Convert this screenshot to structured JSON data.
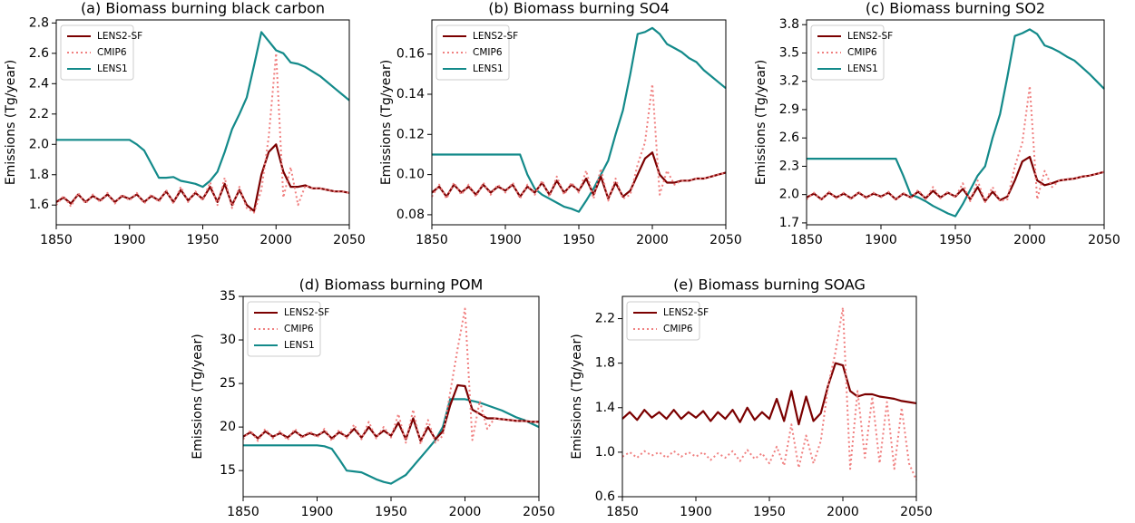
{
  "chart_data": [
    {
      "type": "line",
      "title": "(a) Biomass burning black carbon",
      "ylabel": "Emissions (Tg/year)",
      "x": [
        1850,
        1855,
        1860,
        1865,
        1870,
        1875,
        1880,
        1885,
        1890,
        1895,
        1900,
        1905,
        1910,
        1915,
        1920,
        1925,
        1930,
        1935,
        1940,
        1945,
        1950,
        1955,
        1960,
        1965,
        1970,
        1975,
        1980,
        1985,
        1990,
        1995,
        2000,
        2005,
        2010,
        2015,
        2020,
        2025,
        2030,
        2035,
        2040,
        2045,
        2050
      ],
      "xlim": [
        1850,
        2050
      ],
      "xticks": [
        1850,
        1900,
        1950,
        2000,
        2050
      ],
      "ylim": [
        1.47,
        2.82
      ],
      "yticks": [
        1.6,
        1.8,
        {
          "value": 2.0,
          "label": "2.0"
        },
        2.2,
        2.4,
        2.6,
        2.8
      ],
      "legend": "upper left",
      "series": [
        {
          "name": "LENS2-SF",
          "color": "#7b0000",
          "linestyle": "solid",
          "values": [
            1.62,
            1.65,
            1.61,
            1.67,
            1.62,
            1.66,
            1.63,
            1.67,
            1.62,
            1.66,
            1.64,
            1.67,
            1.62,
            1.66,
            1.63,
            1.69,
            1.62,
            1.7,
            1.63,
            1.68,
            1.64,
            1.72,
            1.62,
            1.74,
            1.6,
            1.7,
            1.6,
            1.56,
            1.8,
            1.95,
            2.0,
            1.82,
            1.72,
            1.72,
            1.73,
            1.71,
            1.71,
            1.7,
            1.69,
            1.69,
            1.68
          ]
        },
        {
          "name": "CMIP6",
          "color": "#f08080",
          "linestyle": "dotted",
          "values": [
            1.6,
            1.66,
            1.59,
            1.68,
            1.61,
            1.67,
            1.62,
            1.68,
            1.61,
            1.67,
            1.63,
            1.68,
            1.61,
            1.67,
            1.62,
            1.7,
            1.61,
            1.72,
            1.62,
            1.69,
            1.63,
            1.75,
            1.6,
            1.78,
            1.58,
            1.72,
            1.58,
            1.55,
            1.7,
            2.05,
            2.6,
            1.65,
            1.85,
            1.6,
            1.73,
            1.71,
            1.71,
            1.7,
            1.69,
            1.69,
            1.68
          ]
        },
        {
          "name": "LENS1",
          "color": "#138a8a",
          "linestyle": "solid",
          "values": [
            2.03,
            2.03,
            2.03,
            2.03,
            2.03,
            2.03,
            2.03,
            2.03,
            2.03,
            2.03,
            2.03,
            2.0,
            1.96,
            1.87,
            1.78,
            1.78,
            1.785,
            1.76,
            1.75,
            1.74,
            1.72,
            1.76,
            1.82,
            1.95,
            2.1,
            2.2,
            2.31,
            2.52,
            2.74,
            2.68,
            2.62,
            2.6,
            2.54,
            2.53,
            2.51,
            2.48,
            2.45,
            2.41,
            2.37,
            2.33,
            2.29
          ]
        }
      ]
    },
    {
      "type": "line",
      "title": "(b) Biomass burning SO4",
      "ylabel": "Emissions (Tg/year)",
      "x": [
        1850,
        1855,
        1860,
        1865,
        1870,
        1875,
        1880,
        1885,
        1890,
        1895,
        1900,
        1905,
        1910,
        1915,
        1920,
        1925,
        1930,
        1935,
        1940,
        1945,
        1950,
        1955,
        1960,
        1965,
        1970,
        1975,
        1980,
        1985,
        1990,
        1995,
        2000,
        2005,
        2010,
        2015,
        2020,
        2025,
        2030,
        2035,
        2040,
        2045,
        2050
      ],
      "xlim": [
        1850,
        2050
      ],
      "xticks": [
        1850,
        1900,
        1950,
        2000,
        2050
      ],
      "ylim": [
        0.075,
        0.177
      ],
      "yticks": [
        0.08,
        {
          "value": 0.1,
          "label": "0.10"
        },
        0.12,
        0.14,
        0.16
      ],
      "legend": "upper left",
      "series": [
        {
          "name": "LENS2-SF",
          "color": "#7b0000",
          "linestyle": "solid",
          "values": [
            0.091,
            0.094,
            0.089,
            0.095,
            0.091,
            0.094,
            0.09,
            0.095,
            0.091,
            0.094,
            0.092,
            0.095,
            0.089,
            0.094,
            0.091,
            0.096,
            0.09,
            0.097,
            0.091,
            0.095,
            0.092,
            0.098,
            0.09,
            0.099,
            0.088,
            0.096,
            0.089,
            0.092,
            0.1,
            0.108,
            0.111,
            0.1,
            0.096,
            0.096,
            0.097,
            0.097,
            0.098,
            0.098,
            0.099,
            0.1,
            0.101
          ]
        },
        {
          "name": "CMIP6",
          "color": "#f08080",
          "linestyle": "dotted",
          "values": [
            0.089,
            0.095,
            0.088,
            0.096,
            0.09,
            0.095,
            0.089,
            0.096,
            0.09,
            0.095,
            0.091,
            0.096,
            0.088,
            0.095,
            0.09,
            0.097,
            0.089,
            0.099,
            0.09,
            0.096,
            0.091,
            0.102,
            0.088,
            0.103,
            0.087,
            0.098,
            0.088,
            0.09,
            0.105,
            0.116,
            0.145,
            0.09,
            0.102,
            0.095,
            0.097,
            0.097,
            0.098,
            0.098,
            0.099,
            0.1,
            0.101
          ]
        },
        {
          "name": "LENS1",
          "color": "#138a8a",
          "linestyle": "solid",
          "values": [
            0.11,
            0.11,
            0.11,
            0.11,
            0.11,
            0.11,
            0.11,
            0.11,
            0.11,
            0.11,
            0.11,
            0.11,
            0.11,
            0.1,
            0.093,
            0.09,
            0.088,
            0.086,
            0.084,
            0.083,
            0.0815,
            0.087,
            0.093,
            0.1,
            0.107,
            0.12,
            0.132,
            0.15,
            0.17,
            0.171,
            0.173,
            0.17,
            0.165,
            0.163,
            0.161,
            0.158,
            0.156,
            0.152,
            0.149,
            0.146,
            0.143
          ]
        }
      ]
    },
    {
      "type": "line",
      "title": "(c) Biomass burning SO2",
      "ylabel": "Emissions (Tg/year)",
      "x": [
        1850,
        1855,
        1860,
        1865,
        1870,
        1875,
        1880,
        1885,
        1890,
        1895,
        1900,
        1905,
        1910,
        1915,
        1920,
        1925,
        1930,
        1935,
        1940,
        1945,
        1950,
        1955,
        1960,
        1965,
        1970,
        1975,
        1980,
        1985,
        1990,
        1995,
        2000,
        2005,
        2010,
        2015,
        2020,
        2025,
        2030,
        2035,
        2040,
        2045,
        2050
      ],
      "xlim": [
        1850,
        2050
      ],
      "xticks": [
        1850,
        1900,
        1950,
        2000,
        2050
      ],
      "ylim": [
        1.68,
        3.85
      ],
      "yticks": [
        1.7,
        {
          "value": 2.0,
          "label": "2.0"
        },
        2.3,
        2.6,
        2.9,
        3.2,
        3.5,
        3.8
      ],
      "legend": "upper left",
      "series": [
        {
          "name": "LENS2-SF",
          "color": "#7b0000",
          "linestyle": "solid",
          "values": [
            1.97,
            2.01,
            1.95,
            2.02,
            1.97,
            2.01,
            1.96,
            2.02,
            1.97,
            2.01,
            1.98,
            2.02,
            1.95,
            2.01,
            1.97,
            2.03,
            1.96,
            2.04,
            1.97,
            2.02,
            1.98,
            2.06,
            1.95,
            2.08,
            1.93,
            2.03,
            1.94,
            1.98,
            2.15,
            2.35,
            2.4,
            2.15,
            2.1,
            2.12,
            2.15,
            2.16,
            2.17,
            2.19,
            2.2,
            2.22,
            2.24
          ]
        },
        {
          "name": "CMIP6",
          "color": "#f08080",
          "linestyle": "dotted",
          "values": [
            1.95,
            2.02,
            1.94,
            2.03,
            1.96,
            2.02,
            1.95,
            2.03,
            1.96,
            2.02,
            1.97,
            2.03,
            1.94,
            2.02,
            1.96,
            2.05,
            1.95,
            2.08,
            1.96,
            2.03,
            1.97,
            2.12,
            1.93,
            2.15,
            1.92,
            2.08,
            1.93,
            1.95,
            2.3,
            2.55,
            3.15,
            1.95,
            2.25,
            2.08,
            2.15,
            2.16,
            2.17,
            2.19,
            2.2,
            2.22,
            2.24
          ]
        },
        {
          "name": "LENS1",
          "color": "#138a8a",
          "linestyle": "solid",
          "values": [
            2.38,
            2.38,
            2.38,
            2.38,
            2.38,
            2.38,
            2.38,
            2.38,
            2.38,
            2.38,
            2.38,
            2.38,
            2.38,
            2.2,
            2.0,
            1.97,
            1.93,
            1.88,
            1.84,
            1.8,
            1.77,
            1.9,
            2.05,
            2.2,
            2.3,
            2.6,
            2.85,
            3.25,
            3.68,
            3.71,
            3.75,
            3.7,
            3.58,
            3.55,
            3.51,
            3.46,
            3.42,
            3.35,
            3.28,
            3.2,
            3.12
          ]
        }
      ]
    },
    {
      "type": "line",
      "title": "(d) Biomass burning POM",
      "ylabel": "Emissions (Tg/year)",
      "x": [
        1850,
        1855,
        1860,
        1865,
        1870,
        1875,
        1880,
        1885,
        1890,
        1895,
        1900,
        1905,
        1910,
        1915,
        1920,
        1925,
        1930,
        1935,
        1940,
        1945,
        1950,
        1955,
        1960,
        1965,
        1970,
        1975,
        1980,
        1985,
        1990,
        1995,
        2000,
        2005,
        2010,
        2015,
        2020,
        2025,
        2030,
        2035,
        2040,
        2045,
        2050
      ],
      "xlim": [
        1850,
        2050
      ],
      "xticks": [
        1850,
        1900,
        1950,
        2000,
        2050
      ],
      "ylim": [
        12,
        35
      ],
      "yticks": [
        15,
        20,
        25,
        30,
        35
      ],
      "legend": "upper left",
      "series": [
        {
          "name": "LENS2-SF",
          "color": "#7b0000",
          "linestyle": "solid",
          "values": [
            18.9,
            19.4,
            18.7,
            19.5,
            18.9,
            19.3,
            18.8,
            19.5,
            18.9,
            19.3,
            19.0,
            19.5,
            18.7,
            19.4,
            18.9,
            19.8,
            18.8,
            20.0,
            18.9,
            19.6,
            19.0,
            20.5,
            18.6,
            21.0,
            18.4,
            20.0,
            18.6,
            19.5,
            22.5,
            24.8,
            24.7,
            22.0,
            21.5,
            21.0,
            21.0,
            20.9,
            20.8,
            20.7,
            20.7,
            20.6,
            20.6
          ]
        },
        {
          "name": "CMIP6",
          "color": "#f08080",
          "linestyle": "dotted",
          "values": [
            18.6,
            19.6,
            18.4,
            19.8,
            18.7,
            19.5,
            18.5,
            19.8,
            18.7,
            19.5,
            18.8,
            19.8,
            18.4,
            19.7,
            18.7,
            20.3,
            18.6,
            20.6,
            18.7,
            20.0,
            18.8,
            21.5,
            18.2,
            22.0,
            18.0,
            20.8,
            18.2,
            19.0,
            24.0,
            29.0,
            33.6,
            18.5,
            23.0,
            19.8,
            21.0,
            20.9,
            20.8,
            20.7,
            20.7,
            20.6,
            20.6
          ]
        },
        {
          "name": "LENS1",
          "color": "#138a8a",
          "linestyle": "solid",
          "values": [
            17.9,
            17.9,
            17.9,
            17.9,
            17.9,
            17.9,
            17.9,
            17.9,
            17.9,
            17.9,
            17.9,
            17.8,
            17.5,
            16.3,
            15,
            14.9,
            14.8,
            14.4,
            14,
            13.7,
            13.5,
            14,
            14.5,
            15.5,
            16.5,
            17.5,
            18.5,
            20,
            23.2,
            23.2,
            23.2,
            23,
            22.8,
            22.5,
            22.2,
            21.9,
            21.5,
            21.1,
            20.8,
            20.4,
            20.0
          ]
        }
      ]
    },
    {
      "type": "line",
      "title": "(e) Biomass burning SOAG",
      "ylabel": "Emissions (Tg/year)",
      "x": [
        1850,
        1855,
        1860,
        1865,
        1870,
        1875,
        1880,
        1885,
        1890,
        1895,
        1900,
        1905,
        1910,
        1915,
        1920,
        1925,
        1930,
        1935,
        1940,
        1945,
        1950,
        1955,
        1960,
        1965,
        1970,
        1975,
        1980,
        1985,
        1990,
        1995,
        2000,
        2005,
        2010,
        2015,
        2020,
        2025,
        2030,
        2035,
        2040,
        2045,
        2050
      ],
      "xlim": [
        1850,
        2050
      ],
      "xticks": [
        1850,
        1900,
        1950,
        2000,
        2050
      ],
      "ylim": [
        0.6,
        2.4
      ],
      "yticks": [
        0.6,
        {
          "value": 1.0,
          "label": "1.0"
        },
        1.4,
        1.8,
        2.2
      ],
      "legend": "upper left",
      "series": [
        {
          "name": "LENS2-SF",
          "color": "#7b0000",
          "linestyle": "solid",
          "values": [
            1.3,
            1.36,
            1.29,
            1.38,
            1.31,
            1.36,
            1.3,
            1.38,
            1.3,
            1.36,
            1.31,
            1.37,
            1.28,
            1.36,
            1.3,
            1.38,
            1.27,
            1.4,
            1.29,
            1.36,
            1.3,
            1.48,
            1.28,
            1.55,
            1.25,
            1.5,
            1.28,
            1.35,
            1.6,
            1.8,
            1.78,
            1.55,
            1.5,
            1.52,
            1.52,
            1.5,
            1.49,
            1.48,
            1.46,
            1.45,
            1.44
          ]
        },
        {
          "name": "CMIP6",
          "color": "#f08080",
          "linestyle": "dotted",
          "values": [
            0.96,
            1.0,
            0.95,
            1.01,
            0.97,
            1.0,
            0.95,
            1.01,
            0.96,
            1.0,
            0.96,
            1.0,
            0.93,
            0.99,
            0.95,
            1.01,
            0.92,
            1.02,
            0.94,
            0.99,
            0.9,
            1.05,
            0.88,
            1.25,
            0.86,
            1.15,
            0.9,
            1.1,
            1.6,
            1.9,
            2.3,
            0.85,
            1.55,
            0.95,
            1.5,
            0.9,
            1.45,
            0.85,
            1.4,
            0.9,
            0.75
          ]
        }
      ]
    }
  ]
}
